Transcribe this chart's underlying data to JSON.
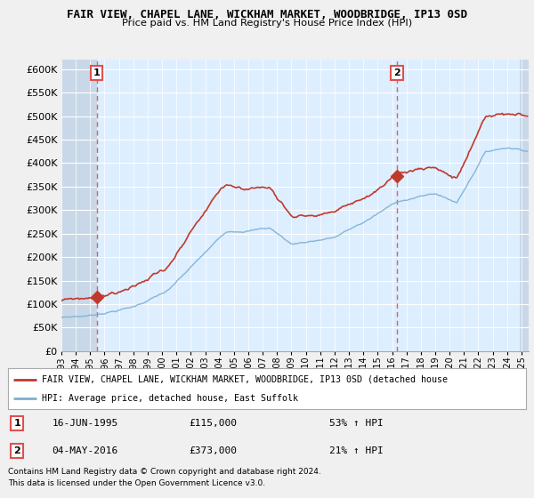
{
  "title": "FAIR VIEW, CHAPEL LANE, WICKHAM MARKET, WOODBRIDGE, IP13 0SD",
  "subtitle": "Price paid vs. HM Land Registry's House Price Index (HPI)",
  "ylim": [
    0,
    620000
  ],
  "yticks": [
    0,
    50000,
    100000,
    150000,
    200000,
    250000,
    300000,
    350000,
    400000,
    450000,
    500000,
    550000,
    600000
  ],
  "ytick_labels": [
    "£0",
    "£50K",
    "£100K",
    "£150K",
    "£200K",
    "£250K",
    "£300K",
    "£350K",
    "£400K",
    "£450K",
    "£500K",
    "£550K",
    "£600K"
  ],
  "hpi_color": "#7bafd4",
  "price_color": "#c0392b",
  "sale1_date_x": 1995.46,
  "sale1_price": 115000,
  "sale2_date_x": 2016.34,
  "sale2_price": 373000,
  "vline_color": "#e05050",
  "marker_color": "#c0392b",
  "background_color": "#f0f0f0",
  "plot_bg_color": "#ddeeff",
  "grid_color": "#ffffff",
  "hatch_color": "#c8d8e8",
  "legend_line1": "FAIR VIEW, CHAPEL LANE, WICKHAM MARKET, WOODBRIDGE, IP13 0SD (detached house",
  "legend_line2": "HPI: Average price, detached house, East Suffolk",
  "note_line1": "Contains HM Land Registry data © Crown copyright and database right 2024.",
  "note_line2": "This data is licensed under the Open Government Licence v3.0.",
  "label1_text": "1",
  "label2_text": "2",
  "ann1_date": "16-JUN-1995",
  "ann1_price": "£115,000",
  "ann1_hpi": "53% ↑ HPI",
  "ann2_date": "04-MAY-2016",
  "ann2_price": "£373,000",
  "ann2_hpi": "21% ↑ HPI",
  "xlim_start": 1993.0,
  "xlim_end": 2025.5
}
